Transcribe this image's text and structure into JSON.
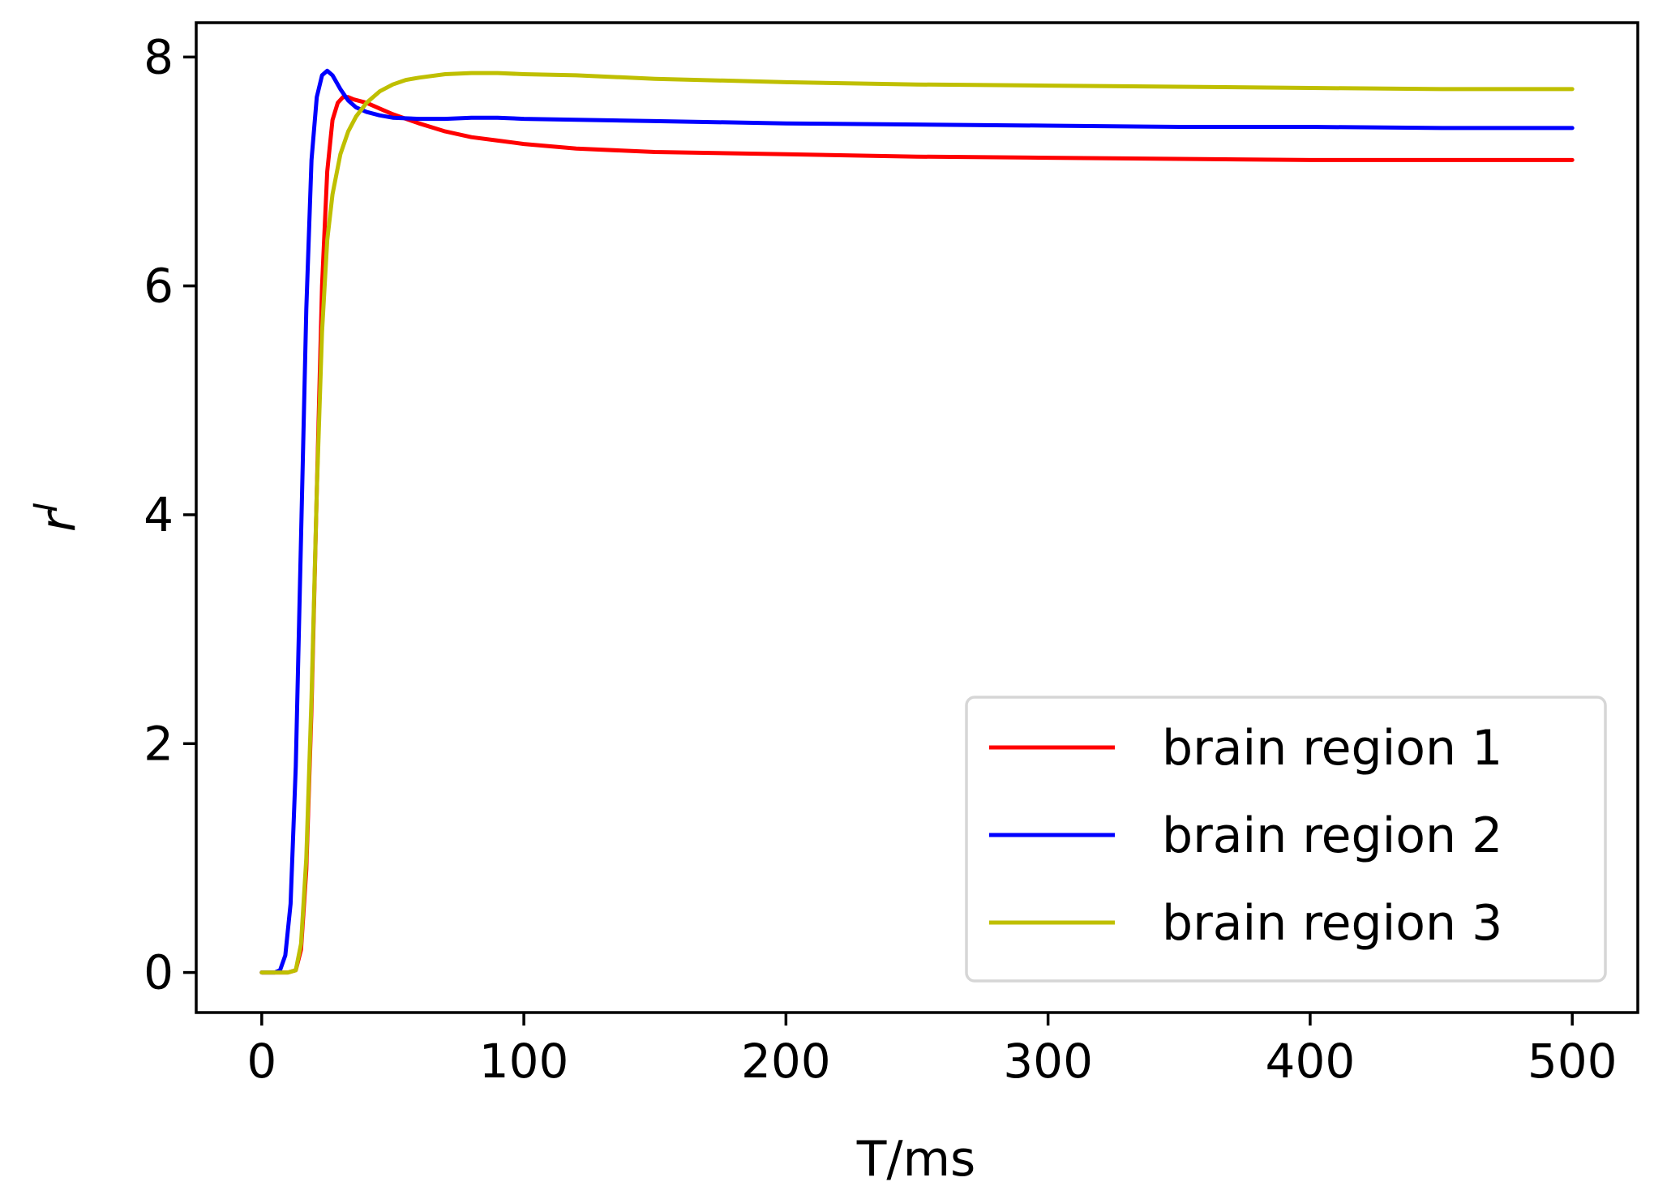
{
  "chart_data": {
    "type": "line",
    "title": "",
    "xlabel": "T/ms",
    "ylabel_base": "r",
    "ylabel_sup": "I",
    "xlim": [
      -25,
      525
    ],
    "ylim": [
      -0.35,
      8.3
    ],
    "xticks": [
      0,
      100,
      200,
      300,
      400,
      500
    ],
    "yticks": [
      0,
      2,
      4,
      6,
      8
    ],
    "grid": false,
    "legend_position": "lower-right",
    "series": [
      {
        "name": "brain region 1",
        "color": "#ff0000",
        "x": [
          0,
          5,
          10,
          13,
          15,
          17,
          19,
          21,
          23,
          25,
          27,
          29,
          31,
          33,
          35,
          40,
          45,
          50,
          60,
          70,
          80,
          90,
          100,
          120,
          150,
          200,
          250,
          300,
          350,
          400,
          450,
          500
        ],
        "y": [
          0,
          0,
          0,
          0.02,
          0.2,
          0.9,
          2.3,
          4.2,
          6.0,
          7.0,
          7.45,
          7.6,
          7.65,
          7.65,
          7.63,
          7.6,
          7.55,
          7.5,
          7.42,
          7.35,
          7.3,
          7.27,
          7.24,
          7.2,
          7.17,
          7.15,
          7.13,
          7.12,
          7.11,
          7.1,
          7.1,
          7.1
        ]
      },
      {
        "name": "brain region 2",
        "color": "#0000ff",
        "x": [
          0,
          5,
          7,
          9,
          11,
          13,
          15,
          17,
          19,
          21,
          23,
          25,
          27,
          30,
          33,
          36,
          40,
          45,
          50,
          60,
          70,
          80,
          90,
          100,
          150,
          200,
          250,
          300,
          350,
          400,
          450,
          500
        ],
        "y": [
          0,
          0,
          0.02,
          0.15,
          0.6,
          1.8,
          3.8,
          5.8,
          7.1,
          7.65,
          7.84,
          7.88,
          7.84,
          7.72,
          7.62,
          7.56,
          7.52,
          7.49,
          7.47,
          7.46,
          7.46,
          7.47,
          7.47,
          7.46,
          7.44,
          7.42,
          7.41,
          7.4,
          7.39,
          7.39,
          7.38,
          7.38
        ]
      },
      {
        "name": "brain region 3",
        "color": "#bfbf00",
        "x": [
          0,
          5,
          10,
          13,
          15,
          17,
          19,
          21,
          23,
          25,
          27,
          30,
          33,
          36,
          40,
          45,
          50,
          55,
          60,
          70,
          80,
          90,
          100,
          120,
          150,
          200,
          250,
          300,
          350,
          400,
          450,
          500
        ],
        "y": [
          0,
          0,
          0,
          0.02,
          0.25,
          1.0,
          2.4,
          4.2,
          5.6,
          6.4,
          6.8,
          7.15,
          7.35,
          7.48,
          7.6,
          7.7,
          7.76,
          7.8,
          7.82,
          7.85,
          7.86,
          7.86,
          7.85,
          7.84,
          7.81,
          7.78,
          7.76,
          7.75,
          7.74,
          7.73,
          7.72,
          7.72
        ]
      }
    ]
  }
}
